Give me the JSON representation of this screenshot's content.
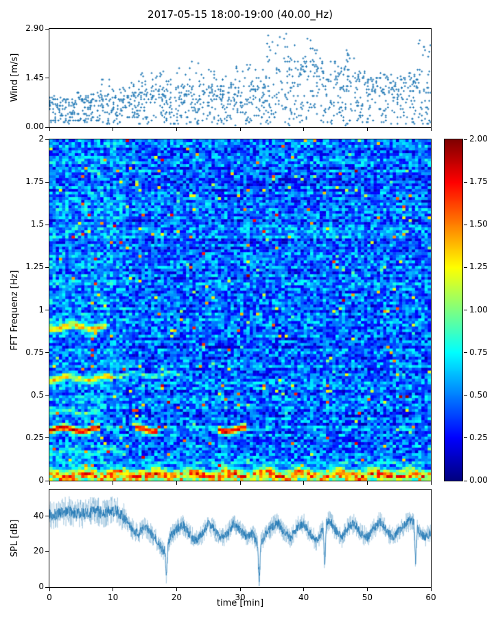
{
  "title": "2017-05-15 18:00-19:00 (40.00_Hz)",
  "labels": {
    "wind_y": "Wind [m/s]",
    "spec_y": "FFT Frequenz [Hz]",
    "spl_y": "SPL [dB]",
    "x": "time [min]"
  },
  "ticks": {
    "wind_y": [
      {
        "v": 2.9,
        "label": "2.90"
      },
      {
        "v": 1.45,
        "label": "1.45"
      },
      {
        "v": 0,
        "label": "0.00"
      }
    ],
    "spec_y": [
      {
        "v": 2,
        "label": "2"
      },
      {
        "v": 1.75,
        "label": "1.75"
      },
      {
        "v": 1.5,
        "label": "1.5"
      },
      {
        "v": 1.25,
        "label": "1.25"
      },
      {
        "v": 1,
        "label": "1"
      },
      {
        "v": 0.75,
        "label": "0.75"
      },
      {
        "v": 0.5,
        "label": "0.5"
      },
      {
        "v": 0.25,
        "label": "0.25"
      },
      {
        "v": 0,
        "label": "0"
      }
    ],
    "spl_y": [
      {
        "v": 40,
        "label": "40"
      },
      {
        "v": 20,
        "label": "20"
      },
      {
        "v": 0,
        "label": "0"
      }
    ],
    "x": [
      {
        "v": 0,
        "label": "0"
      },
      {
        "v": 10,
        "label": "10"
      },
      {
        "v": 20,
        "label": "20"
      },
      {
        "v": 30,
        "label": "30"
      },
      {
        "v": 40,
        "label": "40"
      },
      {
        "v": 50,
        "label": "50"
      },
      {
        "v": 60,
        "label": "60"
      }
    ],
    "colorbar": [
      {
        "v": 2,
        "label": "2.00"
      },
      {
        "v": 1.75,
        "label": "1.75"
      },
      {
        "v": 1.5,
        "label": "1.50"
      },
      {
        "v": 1.25,
        "label": "1.25"
      },
      {
        "v": 1,
        "label": "1.00"
      },
      {
        "v": 0.75,
        "label": "0.75"
      },
      {
        "v": 0.5,
        "label": "0.50"
      },
      {
        "v": 0.25,
        "label": "0.25"
      },
      {
        "v": 0,
        "label": "0.00"
      }
    ]
  },
  "chart_data": [
    {
      "type": "scatter",
      "name": "wind-speed",
      "title": "Wind speed vs time (dense quantized + markers)",
      "xlabel": "time [min]",
      "ylabel": "Wind [m/s]",
      "xlim": [
        0,
        60
      ],
      "ylim": [
        0,
        2.9
      ],
      "marker": "+",
      "marker_color": "#1f77b4",
      "x_bin_minutes": [
        0,
        2,
        4,
        6,
        8,
        10,
        12,
        14,
        16,
        18,
        20,
        22,
        24,
        26,
        28,
        30,
        32,
        34,
        36,
        38,
        40,
        42,
        44,
        46,
        48,
        50,
        52,
        54,
        56,
        58
      ],
      "mean": [
        0.45,
        0.5,
        0.55,
        0.5,
        0.6,
        0.55,
        0.6,
        0.7,
        0.75,
        0.7,
        0.8,
        0.9,
        0.8,
        0.75,
        0.8,
        0.85,
        0.8,
        1.3,
        1.35,
        1.2,
        1.3,
        1.25,
        1.1,
        1.15,
        1.0,
        1.05,
        1.0,
        1.0,
        1.05,
        1.15
      ],
      "max": [
        0.9,
        1.0,
        1.1,
        1.0,
        1.45,
        1.2,
        1.3,
        1.6,
        1.7,
        1.5,
        1.8,
        2.0,
        1.7,
        1.5,
        1.9,
        1.9,
        1.7,
        2.9,
        2.75,
        2.4,
        2.6,
        2.5,
        2.2,
        2.3,
        1.7,
        1.6,
        1.6,
        1.5,
        1.7,
        2.6
      ],
      "points_per_bin": 45,
      "quantize_step": 0.0483
    },
    {
      "type": "heatmap",
      "name": "fft-spectrogram",
      "title": "FFT spectrogram 0-2 Hz over 60 min",
      "xlabel": "time [min]",
      "ylabel": "FFT Frequenz [Hz]",
      "xlim": [
        0,
        60
      ],
      "ylim": [
        0,
        2
      ],
      "clim": [
        0,
        2
      ],
      "colormap": "jet",
      "background_level": 0.45,
      "noise_level": 0.28,
      "row_bias": 0.1,
      "speckle_prob": 0.02,
      "left_boost": 0.06,
      "bands": [
        {
          "f": 0.03,
          "width": 0.05,
          "level": 1.9,
          "variability": 0.5,
          "segments": [
            [
              0,
              60
            ]
          ]
        },
        {
          "f": 0.05,
          "width": 0.02,
          "level": 1.3,
          "variability": 0.5,
          "segments": [
            [
              0,
              60
            ]
          ]
        },
        {
          "f": 0.1,
          "width": 0.02,
          "level": 0.95,
          "variability": 0.5,
          "segments": [
            [
              0,
              60
            ]
          ]
        },
        {
          "f": 0.17,
          "width": 0.025,
          "level": 1.0,
          "variability": 0.4,
          "segments": [
            [
              0,
              12
            ]
          ]
        },
        {
          "f": 0.3,
          "width": 0.025,
          "level": 2.0,
          "variability": 0.15,
          "segments": [
            [
              0,
              8
            ],
            [
              13.5,
              17
            ],
            [
              26.5,
              31
            ]
          ]
        },
        {
          "f": 0.4,
          "width": 0.02,
          "level": 1.2,
          "variability": 0.4,
          "segments": [
            [
              0,
              8
            ]
          ]
        },
        {
          "f": 0.6,
          "width": 0.03,
          "level": 1.5,
          "variability": 0.35,
          "segments": [
            [
              0,
              10
            ]
          ]
        },
        {
          "f": 0.62,
          "width": 0.02,
          "level": 1.1,
          "variability": 0.4,
          "segments": [
            [
              10,
              21
            ]
          ]
        },
        {
          "f": 0.9,
          "width": 0.03,
          "level": 1.6,
          "variability": 0.35,
          "segments": [
            [
              0,
              9
            ]
          ]
        }
      ]
    },
    {
      "type": "line",
      "name": "spl",
      "title": "Sound pressure level over 60 min",
      "xlabel": "time [min]",
      "ylabel": "SPL [dB]",
      "xlim": [
        0,
        60
      ],
      "ylim": [
        0,
        55
      ],
      "color": "#1f77b4",
      "x_minutes": [
        0,
        1,
        2,
        3,
        4,
        5,
        6,
        7,
        8,
        9,
        10,
        11,
        12,
        13,
        14,
        15,
        16,
        17,
        18,
        19,
        20,
        21,
        22,
        23,
        24,
        25,
        26,
        27,
        28,
        29,
        30,
        31,
        32,
        33,
        34,
        35,
        36,
        37,
        38,
        39,
        40,
        41,
        42,
        43,
        44,
        45,
        46,
        47,
        48,
        49,
        50,
        51,
        52,
        53,
        54,
        55,
        56,
        57,
        58,
        59,
        60
      ],
      "values": [
        41,
        41,
        42,
        43,
        42,
        41,
        42,
        43,
        42,
        42,
        43,
        42,
        38,
        33,
        30,
        34,
        30,
        26,
        20,
        28,
        33,
        35,
        30,
        26,
        30,
        36,
        32,
        28,
        30,
        36,
        32,
        28,
        30,
        22,
        30,
        34,
        36,
        30,
        28,
        34,
        36,
        30,
        26,
        32,
        38,
        32,
        28,
        34,
        36,
        30,
        28,
        33,
        37,
        32,
        28,
        32,
        36,
        38,
        32,
        28,
        30
      ],
      "dips": [
        {
          "t": 18.4,
          "v": 6
        },
        {
          "t": 33.0,
          "v": 3
        },
        {
          "t": 43.3,
          "v": 11
        },
        {
          "t": 57.6,
          "v": 14
        }
      ],
      "noise_band": 6,
      "noise_main": 2.5
    }
  ]
}
